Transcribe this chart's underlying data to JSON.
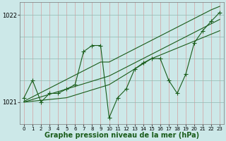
{
  "xlabel": "Graphe pression niveau de la mer (hPa)",
  "background_color": "#cce8e8",
  "line_color": "#1a5c1a",
  "x_values": [
    0,
    1,
    2,
    3,
    4,
    5,
    6,
    7,
    8,
    9,
    10,
    11,
    12,
    13,
    14,
    15,
    16,
    17,
    18,
    19,
    20,
    21,
    22,
    23
  ],
  "y_main": [
    1021.05,
    1021.25,
    1021.0,
    1021.1,
    1021.1,
    1021.15,
    1021.2,
    1021.58,
    1021.65,
    1021.65,
    1020.82,
    1021.05,
    1021.15,
    1021.38,
    1021.45,
    1021.5,
    1021.5,
    1021.25,
    1021.1,
    1021.32,
    1021.68,
    1021.82,
    1021.93,
    1022.03
  ],
  "y_trend1": [
    1021.01,
    1021.06,
    1021.11,
    1021.16,
    1021.21,
    1021.26,
    1021.31,
    1021.36,
    1021.41,
    1021.46,
    1021.46,
    1021.51,
    1021.56,
    1021.61,
    1021.66,
    1021.71,
    1021.76,
    1021.81,
    1021.86,
    1021.91,
    1021.96,
    1022.01,
    1022.06,
    1022.1
  ],
  "y_trend2": [
    1021.0,
    1021.03,
    1021.06,
    1021.09,
    1021.12,
    1021.15,
    1021.18,
    1021.21,
    1021.24,
    1021.27,
    1021.3,
    1021.35,
    1021.4,
    1021.45,
    1021.5,
    1021.55,
    1021.6,
    1021.65,
    1021.7,
    1021.75,
    1021.8,
    1021.85,
    1021.9,
    1021.95
  ],
  "y_trend3": [
    1021.0,
    1021.01,
    1021.02,
    1021.03,
    1021.04,
    1021.05,
    1021.08,
    1021.11,
    1021.14,
    1021.17,
    1021.2,
    1021.26,
    1021.32,
    1021.38,
    1021.44,
    1021.5,
    1021.54,
    1021.58,
    1021.62,
    1021.66,
    1021.7,
    1021.74,
    1021.78,
    1021.82
  ],
  "ylim_min": 1020.75,
  "ylim_max": 1022.15,
  "ytick_vals": [
    1021,
    1022
  ],
  "xtick_vals": [
    0,
    1,
    2,
    3,
    4,
    5,
    6,
    7,
    8,
    9,
    10,
    11,
    12,
    13,
    14,
    15,
    16,
    17,
    18,
    19,
    20,
    21,
    22,
    23
  ],
  "vgrid_color": "#d4a0a0",
  "hgrid_color": "#90b8b0",
  "xlabel_fontsize": 7,
  "tick_fontsize": 6,
  "line_width": 0.8,
  "marker_size": 3
}
